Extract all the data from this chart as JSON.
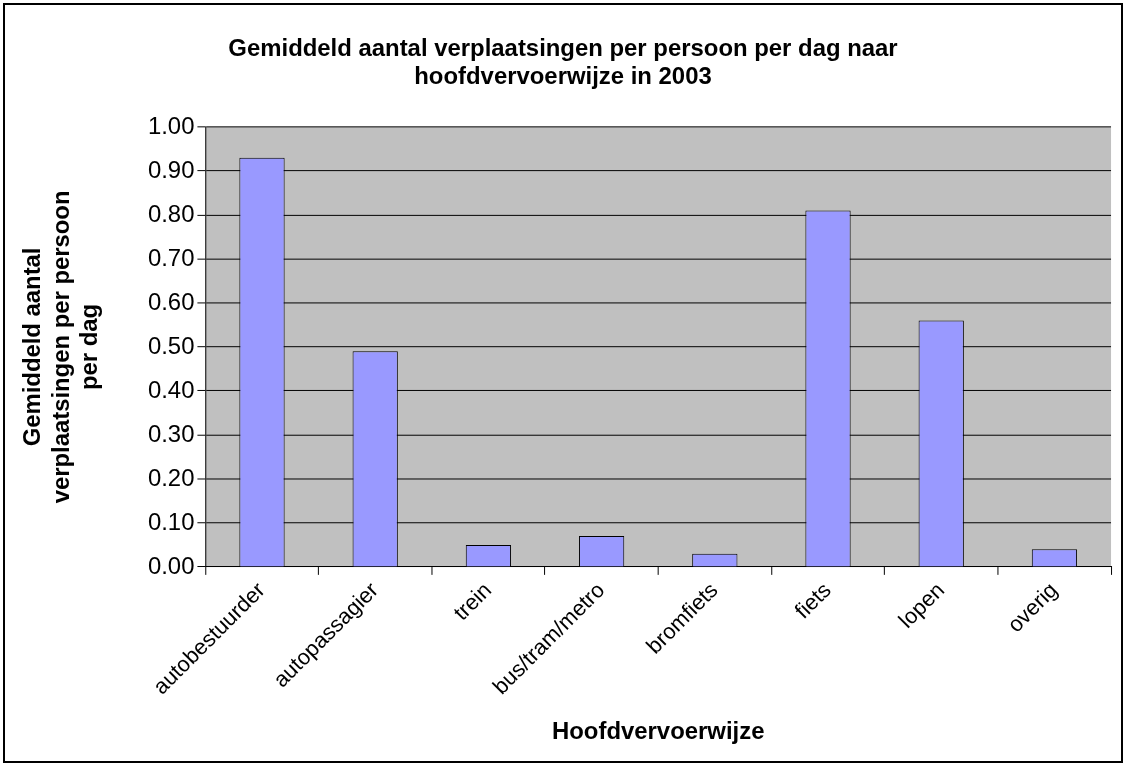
{
  "chart_data": {
    "type": "bar",
    "title": "Gemiddeld aantal verplaatsingen per persoon per dag naar hoofdvervoerwijze in 2003",
    "xlabel": "Hoofdvervoerwijze",
    "ylabel": "Gemiddeld aantal verplaatsingen per persoon per dag",
    "categories": [
      "autobestuurder",
      "autopassagier",
      "trein",
      "bus/tram/metro",
      "bromfiets",
      "fiets",
      "lopen",
      "overig"
    ],
    "values": [
      0.93,
      0.49,
      0.05,
      0.07,
      0.03,
      0.81,
      0.56,
      0.04
    ],
    "color": "#9999ff",
    "ylim": [
      0,
      1
    ],
    "yticks": [
      {
        "value": 0,
        "label": "0.00"
      },
      {
        "value": 0.1,
        "label": "0.10"
      },
      {
        "value": 0.2,
        "label": "0.20"
      },
      {
        "value": 0.3,
        "label": "0.30"
      },
      {
        "value": 0.4,
        "label": "0.40"
      },
      {
        "value": 0.5,
        "label": "0.50"
      },
      {
        "value": 0.6,
        "label": "0.60"
      },
      {
        "value": 0.7,
        "label": "0.70"
      },
      {
        "value": 0.8,
        "label": "0.80"
      },
      {
        "value": 0.9,
        "label": "0.90"
      },
      {
        "value": 1,
        "label": "1.00"
      }
    ],
    "grid": "y",
    "legend": false
  }
}
